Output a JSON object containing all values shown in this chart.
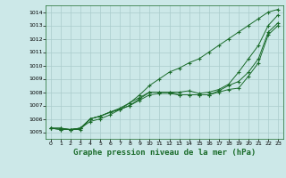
{
  "bg_color": "#cce8e8",
  "grid_color": "#aacccc",
  "line_color": "#1a6b2a",
  "marker_color": "#1a6b2a",
  "title": "Graphe pression niveau de la mer (hPa)",
  "title_fontsize": 6.5,
  "xlim": [
    -0.5,
    23.5
  ],
  "ylim": [
    1004.5,
    1014.5
  ],
  "xticks": [
    0,
    1,
    2,
    3,
    4,
    5,
    6,
    7,
    8,
    9,
    10,
    11,
    12,
    13,
    14,
    15,
    16,
    17,
    18,
    19,
    20,
    21,
    22,
    23
  ],
  "yticks": [
    1005,
    1006,
    1007,
    1008,
    1009,
    1010,
    1011,
    1012,
    1013,
    1014
  ],
  "series": [
    [
      1005.3,
      1005.3,
      1005.2,
      1005.2,
      1006.0,
      1006.2,
      1006.5,
      1006.7,
      1007.0,
      1007.5,
      1008.0,
      1008.0,
      1008.0,
      1007.8,
      1007.8,
      1007.8,
      1007.8,
      1008.0,
      1008.2,
      1008.3,
      1009.2,
      1010.2,
      1012.3,
      1013.0
    ],
    [
      1005.3,
      1005.3,
      1005.2,
      1005.3,
      1006.0,
      1006.2,
      1006.5,
      1006.7,
      1007.0,
      1007.4,
      1007.8,
      1007.9,
      1007.9,
      1007.8,
      1007.8,
      1007.8,
      1007.8,
      1008.1,
      1008.5,
      1008.8,
      1009.5,
      1010.5,
      1012.5,
      1013.2
    ],
    [
      1005.3,
      1005.2,
      1005.2,
      1005.3,
      1006.0,
      1006.2,
      1006.5,
      1006.8,
      1007.2,
      1007.6,
      1008.0,
      1008.0,
      1008.0,
      1008.0,
      1008.1,
      1007.9,
      1008.0,
      1008.2,
      1008.6,
      1009.5,
      1010.5,
      1011.5,
      1013.0,
      1013.8
    ],
    [
      1005.3,
      1005.2,
      1005.2,
      1005.3,
      1005.8,
      1006.0,
      1006.3,
      1006.7,
      1007.2,
      1007.8,
      1008.5,
      1009.0,
      1009.5,
      1009.8,
      1010.2,
      1010.5,
      1011.0,
      1011.5,
      1012.0,
      1012.5,
      1013.0,
      1013.5,
      1014.0,
      1014.2
    ]
  ]
}
